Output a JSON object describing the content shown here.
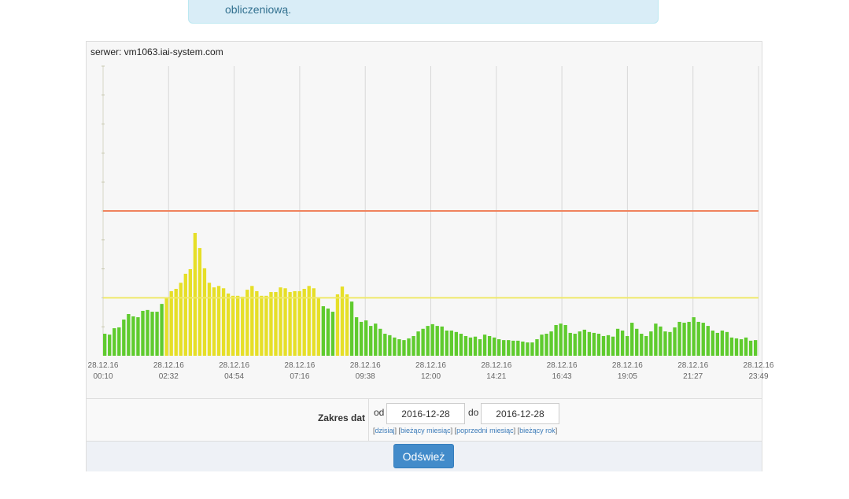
{
  "alert": {
    "text": "obliczeniową."
  },
  "panel": {
    "server_label": "serwer: vm1063.iai-system.com"
  },
  "form": {
    "range_label": "Zakres dat",
    "from_label": "od",
    "from_value": "2016-12-28",
    "to_label": "do",
    "to_value": "2016-12-28",
    "quick_links": [
      "dzisiaj",
      "bieżący miesiąc",
      "poprzedni miesiąc",
      "bieżący rok"
    ],
    "refresh_label": "Odśwież"
  },
  "colors": {
    "bar_green": "#5fcb2e",
    "bar_yellow": "#e6df27",
    "red_threshold": "#f0835e",
    "yellow_threshold": "#efe96a",
    "button": "#428bca"
  },
  "chart_data": {
    "type": "bar",
    "x_ticks": [
      [
        "28.12.16",
        "00:10"
      ],
      [
        "28.12.16",
        "02:32"
      ],
      [
        "28.12.16",
        "04:54"
      ],
      [
        "28.12.16",
        "07:16"
      ],
      [
        "28.12.16",
        "09:38"
      ],
      [
        "28.12.16",
        "12:00"
      ],
      [
        "28.12.16",
        "14:21"
      ],
      [
        "28.12.16",
        "16:43"
      ],
      [
        "28.12.16",
        "19:05"
      ],
      [
        "28.12.16",
        "21:27"
      ],
      [
        "28.12.16",
        "23:49"
      ]
    ],
    "ylim": [
      0,
      100
    ],
    "thresholds": [
      {
        "value": 50,
        "color": "#f0835e"
      },
      {
        "value": 20,
        "color": "#efe96a"
      }
    ],
    "values": [
      7.6,
      7.3,
      9.5,
      9.8,
      12.5,
      14.4,
      13.6,
      13.3,
      15.5,
      15.8,
      15.2,
      15.2,
      17.9,
      20.1,
      22.3,
      23.1,
      25.2,
      28.3,
      29.9,
      42.4,
      37.2,
      30.2,
      25.2,
      23.6,
      24.1,
      23.3,
      21.5,
      20.7,
      20.7,
      20.4,
      22.8,
      24.1,
      22.3,
      20.7,
      20.7,
      22.0,
      22.0,
      23.6,
      23.3,
      22.0,
      22.3,
      22.3,
      23.1,
      24.1,
      23.3,
      20.1,
      17.1,
      16.3,
      15.2,
      21.2,
      23.9,
      21.2,
      18.7,
      13.3,
      11.7,
      12.2,
      10.3,
      11.1,
      9.3,
      7.6,
      7.1,
      6.3,
      5.7,
      5.4,
      6.0,
      6.8,
      8.4,
      9.3,
      10.3,
      10.9,
      10.3,
      10.1,
      8.7,
      8.7,
      8.2,
      7.6,
      6.8,
      6.3,
      6.6,
      5.7,
      7.3,
      6.8,
      6.3,
      5.7,
      5.4,
      5.4,
      5.2,
      5.2,
      4.9,
      4.6,
      4.6,
      5.7,
      7.3,
      7.6,
      8.4,
      10.6,
      11.1,
      10.6,
      7.9,
      7.6,
      8.4,
      9.0,
      8.2,
      7.9,
      7.6,
      6.8,
      7.1,
      6.6,
      9.3,
      8.7,
      6.8,
      11.4,
      9.3,
      7.6,
      6.8,
      8.4,
      11.1,
      10.1,
      8.4,
      8.2,
      9.8,
      11.7,
      11.4,
      11.7,
      13.3,
      11.7,
      11.4,
      10.3,
      8.7,
      7.9,
      8.7,
      8.2,
      6.3,
      6.0,
      5.7,
      6.3,
      5.2,
      5.4
    ]
  }
}
